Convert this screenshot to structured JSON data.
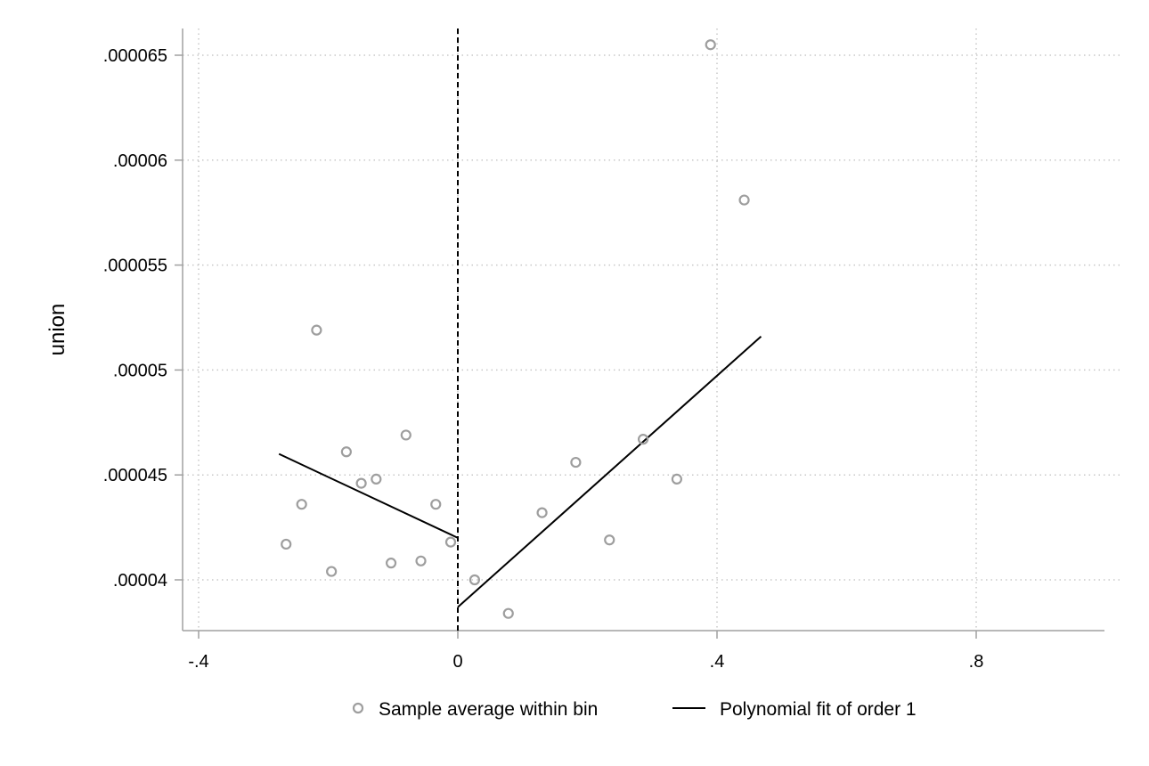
{
  "chart_data": {
    "type": "scatter",
    "title": "",
    "xlabel": "",
    "ylabel": "union",
    "xlim": [
      -0.4,
      1.0
    ],
    "ylim": [
      3.75e-05,
      6.65e-05
    ],
    "x_ticks": [
      {
        "value": -0.4,
        "label": "-.4"
      },
      {
        "value": 0,
        "label": "0"
      },
      {
        "value": 0.4,
        "label": ".4"
      },
      {
        "value": 0.8,
        "label": ".8"
      }
    ],
    "y_ticks": [
      {
        "value": 4e-05,
        "label": ".00004"
      },
      {
        "value": 4.5e-05,
        "label": ".000045"
      },
      {
        "value": 5e-05,
        "label": ".00005"
      },
      {
        "value": 5.5e-05,
        "label": ".000055"
      },
      {
        "value": 6e-05,
        "label": ".00006"
      },
      {
        "value": 6.5e-05,
        "label": ".000065"
      }
    ],
    "grid": true,
    "cutoff": 0,
    "legend_position": "bottom",
    "series": [
      {
        "name": "Sample average within bin",
        "kind": "scatter",
        "color": "#9e9e9e",
        "points": [
          {
            "x": -0.265,
            "y": 4.17e-05
          },
          {
            "x": -0.241,
            "y": 4.36e-05
          },
          {
            "x": -0.218,
            "y": 5.19e-05
          },
          {
            "x": -0.195,
            "y": 4.04e-05
          },
          {
            "x": -0.172,
            "y": 4.61e-05
          },
          {
            "x": -0.149,
            "y": 4.46e-05
          },
          {
            "x": -0.126,
            "y": 4.48e-05
          },
          {
            "x": -0.103,
            "y": 4.08e-05
          },
          {
            "x": -0.08,
            "y": 4.69e-05
          },
          {
            "x": -0.057,
            "y": 4.09e-05
          },
          {
            "x": -0.034,
            "y": 4.36e-05
          },
          {
            "x": -0.011,
            "y": 4.18e-05
          },
          {
            "x": 0.026,
            "y": 4e-05
          },
          {
            "x": 0.078,
            "y": 3.84e-05
          },
          {
            "x": 0.13,
            "y": 4.32e-05
          },
          {
            "x": 0.182,
            "y": 4.56e-05
          },
          {
            "x": 0.234,
            "y": 4.19e-05
          },
          {
            "x": 0.286,
            "y": 4.67e-05
          },
          {
            "x": 0.338,
            "y": 4.48e-05
          },
          {
            "x": 0.39,
            "y": 6.55e-05
          },
          {
            "x": 0.442,
            "y": 5.81e-05
          }
        ]
      },
      {
        "name": "Polynomial fit of order 1",
        "kind": "line",
        "color": "#000000",
        "segments": [
          [
            {
              "x": -0.276,
              "y": 4.6e-05
            },
            {
              "x": 0,
              "y": 4.2e-05
            }
          ],
          [
            {
              "x": 0,
              "y": 3.87e-05
            },
            {
              "x": 0.468,
              "y": 5.16e-05
            }
          ]
        ]
      }
    ]
  }
}
